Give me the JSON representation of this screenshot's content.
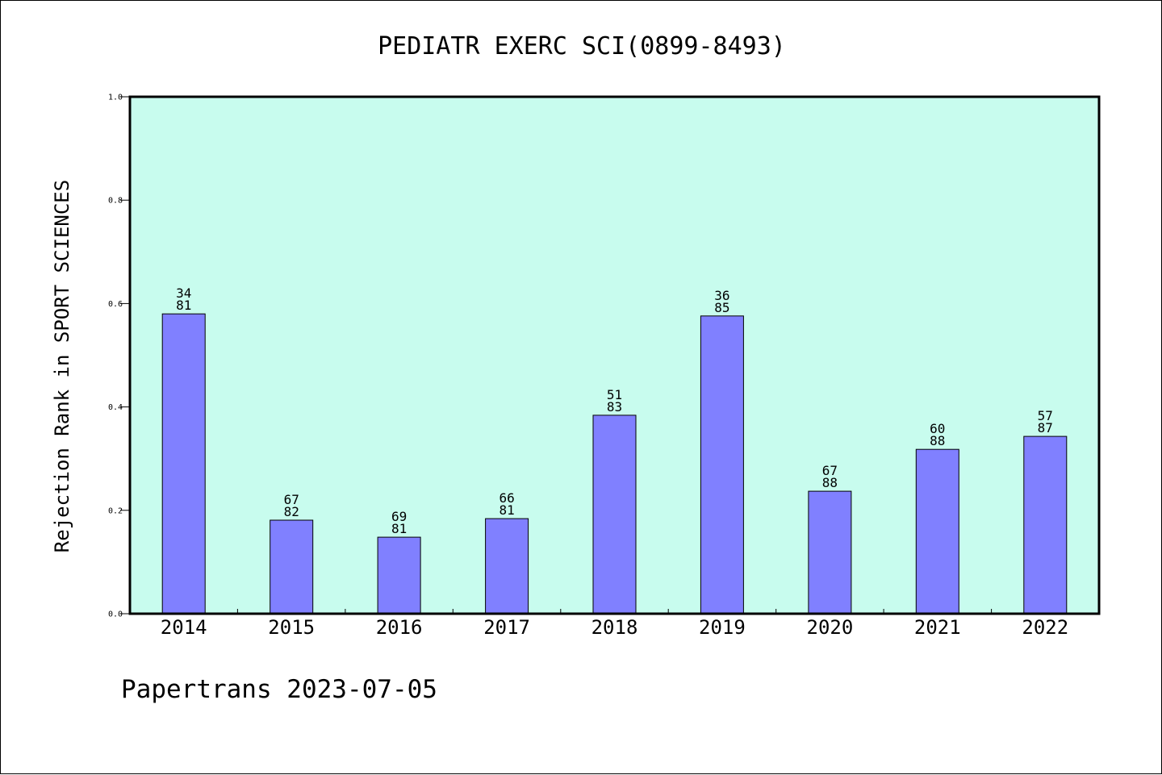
{
  "chart_data": {
    "type": "bar",
    "title": "PEDIATR EXERC SCI(0899-8493)",
    "ylabel": "Rejection Rank in SPORT SCIENCES",
    "xlabel": "",
    "footer": "Papertrans 2023-07-05",
    "ylim": [
      0,
      1.0
    ],
    "yticks": [
      "0.0",
      "0.2",
      "0.4",
      "0.6",
      "0.8",
      "1.0"
    ],
    "categories": [
      "2014",
      "2015",
      "2016",
      "2017",
      "2018",
      "2019",
      "2020",
      "2021",
      "2022"
    ],
    "values": [
      0.58,
      0.181,
      0.148,
      0.184,
      0.384,
      0.576,
      0.237,
      0.318,
      0.343
    ],
    "labels": [
      [
        "34",
        "81"
      ],
      [
        "67",
        "82"
      ],
      [
        "69",
        "81"
      ],
      [
        "66",
        "81"
      ],
      [
        "51",
        "83"
      ],
      [
        "36",
        "85"
      ],
      [
        "67",
        "88"
      ],
      [
        "60",
        "88"
      ],
      [
        "57",
        "87"
      ]
    ],
    "grid": false,
    "colors": {
      "plot_background": "#c8fcee",
      "bar_fill": "#8080ff",
      "bar_stroke": "#000000",
      "axis": "#000000"
    }
  }
}
